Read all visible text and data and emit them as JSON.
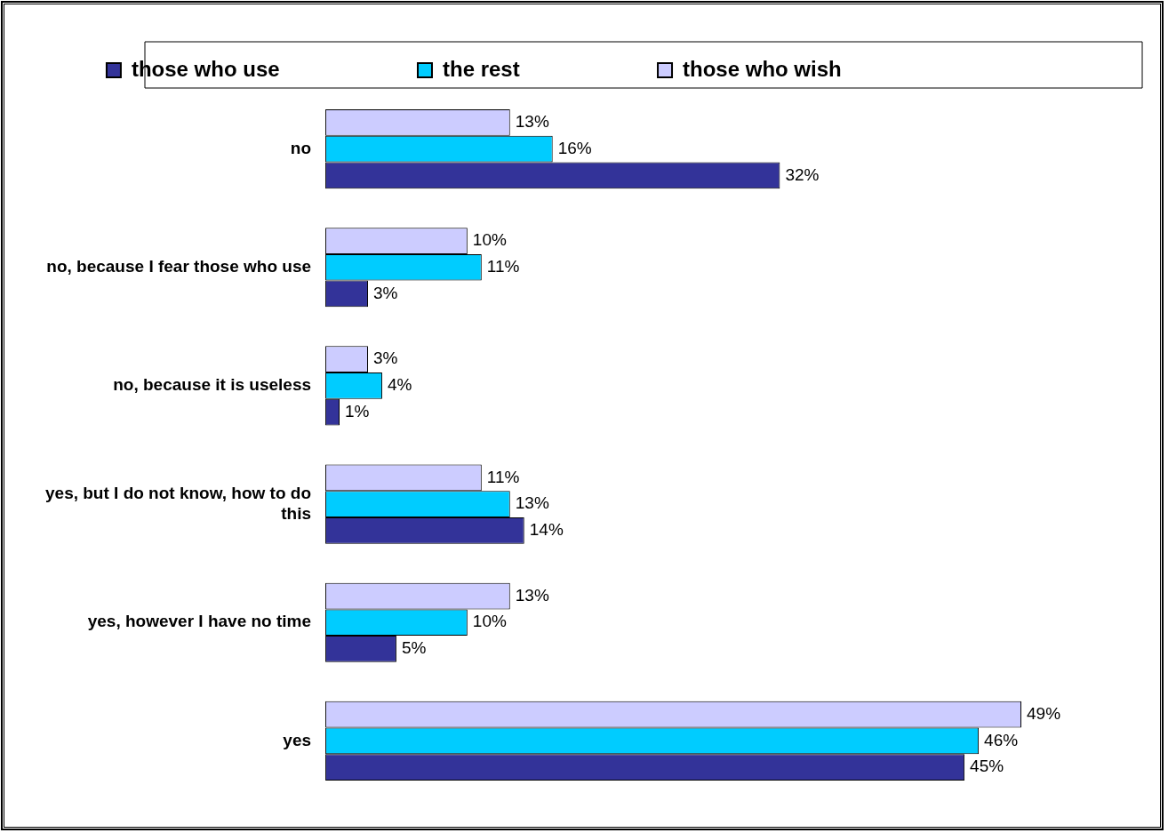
{
  "chart_data": {
    "type": "bar",
    "orientation": "horizontal",
    "legend": "top",
    "categories": [
      "no",
      "no, because I fear those who use",
      "no, because it is useless",
      "yes, but I do not know, how to do this",
      "yes, however I have no time",
      "yes"
    ],
    "series": [
      {
        "name": "those who wish",
        "color": "#ccccff",
        "values": [
          13,
          10,
          3,
          11,
          13,
          49
        ],
        "value_labels": [
          "13%",
          "10%",
          "3%",
          "11%",
          "13%",
          "49%"
        ]
      },
      {
        "name": "the rest",
        "color": "#00ccff",
        "values": [
          16,
          11,
          4,
          13,
          10,
          46
        ],
        "value_labels": [
          "16%",
          "11%",
          "4%",
          "13%",
          "10%",
          "46%"
        ]
      },
      {
        "name": "those who use",
        "color": "#333399",
        "values": [
          32,
          3,
          1,
          14,
          5,
          45
        ],
        "value_labels": [
          "32%",
          "3%",
          "1%",
          "14%",
          "5%",
          "45%"
        ]
      }
    ]
  }
}
